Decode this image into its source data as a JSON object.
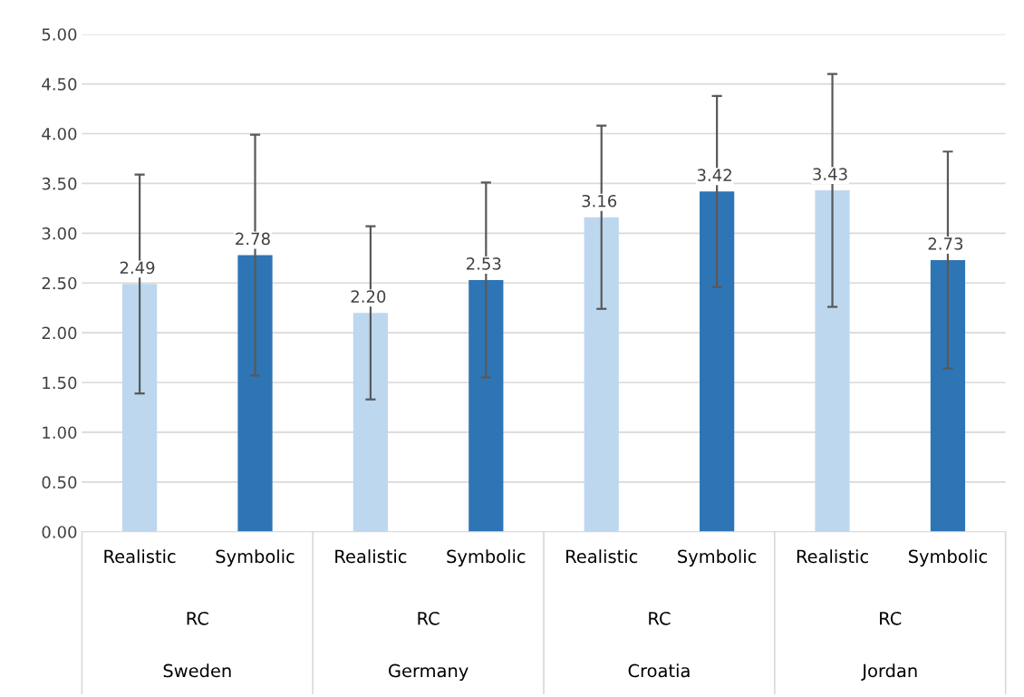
{
  "chart_data": {
    "type": "bar",
    "categories": [
      "Realistic",
      "Symbolic",
      "Realistic",
      "Symbolic",
      "Realistic",
      "Symbolic",
      "Realistic",
      "Symbolic"
    ],
    "values": [
      2.49,
      2.78,
      2.2,
      2.53,
      3.16,
      3.42,
      3.43,
      2.73
    ],
    "errors": [
      1.1,
      1.21,
      0.87,
      0.98,
      0.92,
      0.96,
      1.17,
      1.09
    ],
    "colors": [
      "#bdd7ee",
      "#2e75b6",
      "#bdd7ee",
      "#2e75b6",
      "#bdd7ee",
      "#2e75b6",
      "#bdd7ee",
      "#2e75b6"
    ],
    "value_labels": [
      "2.49",
      "2.78",
      "2.20",
      "2.53",
      "3.16",
      "3.42",
      "3.43",
      "2.73"
    ],
    "annotations": [
      "RC",
      "RC",
      "RC",
      "RC",
      "Sweden",
      "Germany",
      "Croatia",
      "Jordan"
    ],
    "ylim": [
      0,
      5
    ],
    "yticks": [
      {
        "value": 0,
        "label": "0.00"
      },
      {
        "value": 0.5,
        "label": "0.50"
      },
      {
        "value": 1,
        "label": "1.00"
      },
      {
        "value": 1.5,
        "label": "1.50"
      },
      {
        "value": 2,
        "label": "2.00"
      },
      {
        "value": 2.5,
        "label": "2.50"
      },
      {
        "value": 3,
        "label": "3.00"
      },
      {
        "value": 3.5,
        "label": "3.50"
      },
      {
        "value": 4,
        "label": "4.00"
      },
      {
        "value": 4.5,
        "label": "4.50"
      },
      {
        "value": 5,
        "label": "5.00"
      }
    ],
    "grid": "y"
  }
}
